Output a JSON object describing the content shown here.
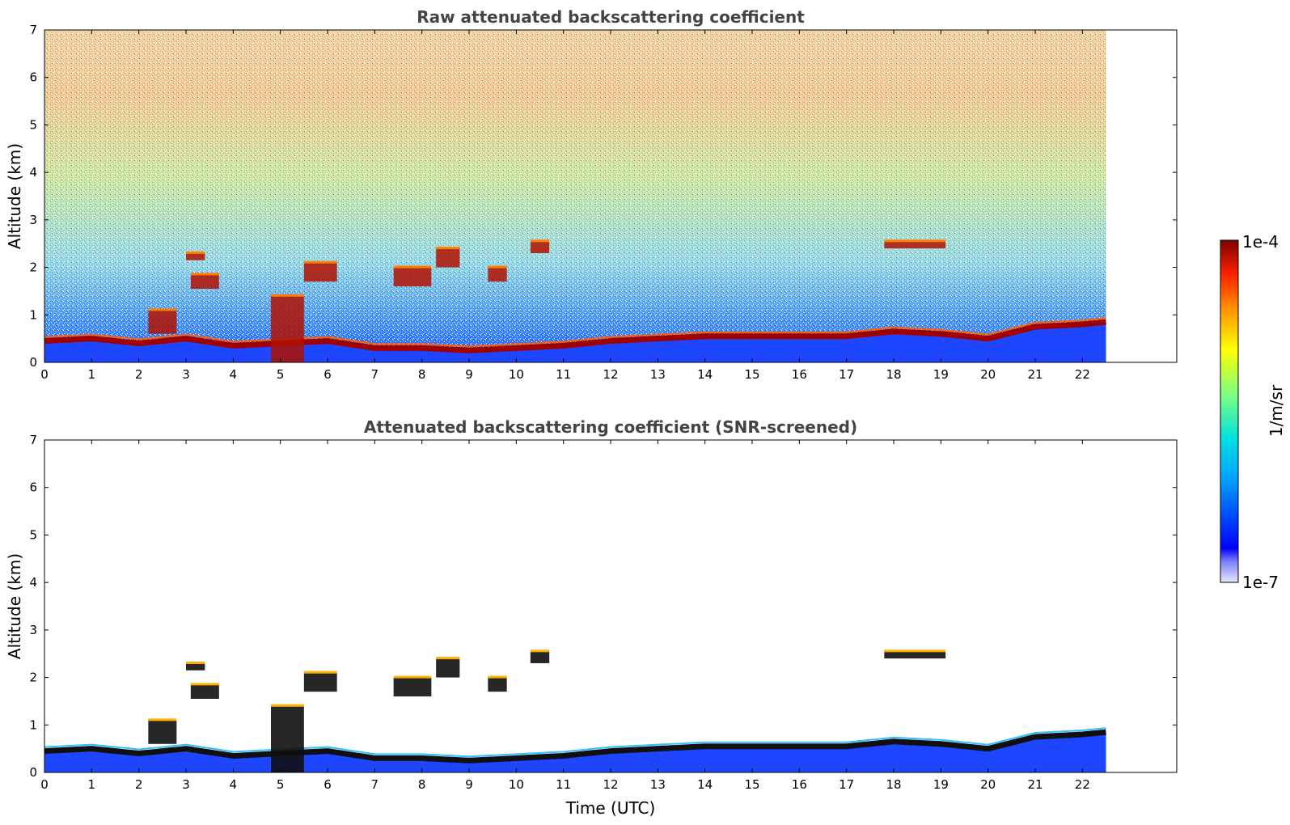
{
  "chart_data": [
    {
      "type": "heatmap",
      "title": "Raw attenuated backscattering coefficient",
      "xlabel": "",
      "ylabel": "Altitude (km)",
      "xlim": [
        0,
        24
      ],
      "ylim": [
        0,
        7
      ],
      "x_ticks": [
        "0",
        "1",
        "2",
        "3",
        "4",
        "5",
        "6",
        "7",
        "8",
        "9",
        "10",
        "11",
        "12",
        "13",
        "14",
        "15",
        "16",
        "17",
        "18",
        "19",
        "20",
        "21",
        "22"
      ],
      "y_ticks": [
        "0",
        "1",
        "2",
        "3",
        "4",
        "5",
        "6",
        "7"
      ],
      "data_time_range": [
        0,
        22.5
      ],
      "boundary_layer_top_km": [
        [
          0,
          0.45
        ],
        [
          1,
          0.5
        ],
        [
          2,
          0.4
        ],
        [
          3,
          0.5
        ],
        [
          4,
          0.35
        ],
        [
          5,
          0.4
        ],
        [
          6,
          0.45
        ],
        [
          7,
          0.3
        ],
        [
          8,
          0.3
        ],
        [
          9,
          0.25
        ],
        [
          10,
          0.3
        ],
        [
          11,
          0.35
        ],
        [
          12,
          0.45
        ],
        [
          13,
          0.5
        ],
        [
          14,
          0.55
        ],
        [
          15,
          0.55
        ],
        [
          16,
          0.55
        ],
        [
          17,
          0.55
        ],
        [
          18,
          0.65
        ],
        [
          19,
          0.6
        ],
        [
          20,
          0.5
        ],
        [
          21,
          0.75
        ],
        [
          22,
          0.8
        ],
        [
          22.5,
          0.85
        ]
      ],
      "cloud_layers": [
        {
          "start": 2.2,
          "end": 2.8,
          "base_km": 0.6,
          "top_km": 1.1
        },
        {
          "start": 3.0,
          "end": 3.4,
          "base_km": 2.15,
          "top_km": 2.3
        },
        {
          "start": 3.1,
          "end": 3.7,
          "base_km": 1.55,
          "top_km": 1.85
        },
        {
          "start": 4.8,
          "end": 5.5,
          "base_km": 0.0,
          "top_km": 1.4
        },
        {
          "start": 5.5,
          "end": 6.2,
          "base_km": 1.7,
          "top_km": 2.1
        },
        {
          "start": 7.4,
          "end": 8.2,
          "base_km": 1.6,
          "top_km": 2.0
        },
        {
          "start": 8.3,
          "end": 8.8,
          "base_km": 2.0,
          "top_km": 2.4
        },
        {
          "start": 9.4,
          "end": 9.8,
          "base_km": 1.7,
          "top_km": 2.0
        },
        {
          "start": 10.3,
          "end": 10.7,
          "base_km": 2.3,
          "top_km": 2.55
        },
        {
          "start": 17.8,
          "end": 19.1,
          "base_km": 2.4,
          "top_km": 2.55
        }
      ]
    },
    {
      "type": "heatmap",
      "title": "Attenuated backscattering coefficient (SNR-screened)",
      "xlabel": "Time (UTC)",
      "ylabel": "Altitude (km)",
      "xlim": [
        0,
        24
      ],
      "ylim": [
        0,
        7
      ],
      "x_ticks": [
        "0",
        "1",
        "2",
        "3",
        "4",
        "5",
        "6",
        "7",
        "8",
        "9",
        "10",
        "11",
        "12",
        "13",
        "14",
        "15",
        "16",
        "17",
        "18",
        "19",
        "20",
        "21",
        "22"
      ],
      "y_ticks": [
        "0",
        "1",
        "2",
        "3",
        "4",
        "5",
        "6",
        "7"
      ],
      "data_time_range": [
        0,
        22.5
      ]
    }
  ],
  "colorbar": {
    "label": "1/m/sr",
    "max_label": "1e-4",
    "min_label": "1e-7",
    "scale": "log",
    "range": [
      1e-07,
      0.0001
    ],
    "colormap": [
      "#e8e8f8",
      "#0000ff",
      "#00c8ff",
      "#80ff80",
      "#ffff00",
      "#ff8000",
      "#ff0000",
      "#800000"
    ]
  }
}
